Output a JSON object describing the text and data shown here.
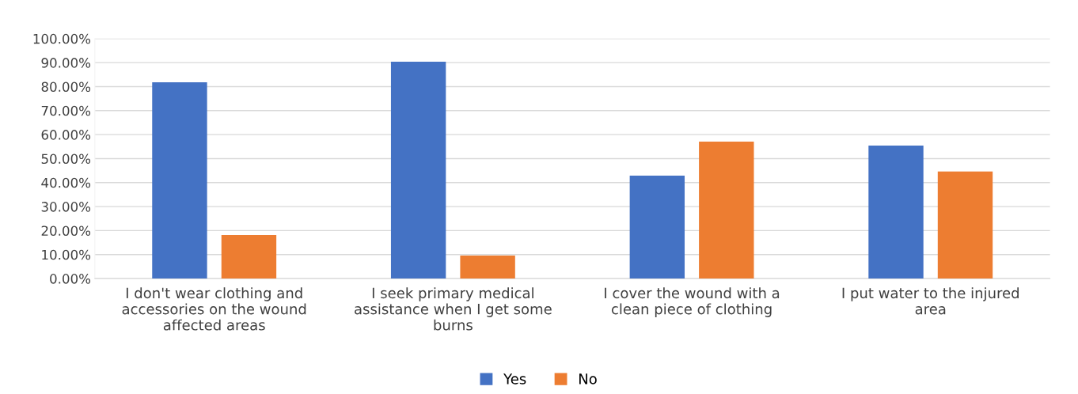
{
  "chart_data": {
    "type": "bar",
    "categories": [
      "I don't wear clothing and\naccessories on the wound\naffected areas",
      "I seek primary medical\nassistance when I get some\nburns",
      "I cover the wound with a\nclean piece of clothing",
      "I put water to the injured\narea"
    ],
    "series": [
      {
        "name": "Yes",
        "color": "#4472c4",
        "values": [
          81.8,
          90.4,
          42.9,
          55.4
        ]
      },
      {
        "name": "No",
        "color": "#ed7d31",
        "values": [
          18.2,
          9.6,
          57.1,
          44.6
        ]
      }
    ],
    "ylim": [
      0,
      100
    ],
    "yticks": [
      {
        "value": 0,
        "label": "0.00%"
      },
      {
        "value": 10,
        "label": "10.00%"
      },
      {
        "value": 20,
        "label": "20.00%"
      },
      {
        "value": 30,
        "label": "30.00%"
      },
      {
        "value": 40,
        "label": "40.00%"
      },
      {
        "value": 50,
        "label": "50.00%"
      },
      {
        "value": 60,
        "label": "60.00%"
      },
      {
        "value": 70,
        "label": "70.00%"
      },
      {
        "value": 80,
        "label": "80.00%"
      },
      {
        "value": 90,
        "label": "90.00%"
      },
      {
        "value": 100,
        "label": "100.00%"
      }
    ],
    "grid": "y",
    "legend": "bottom"
  }
}
